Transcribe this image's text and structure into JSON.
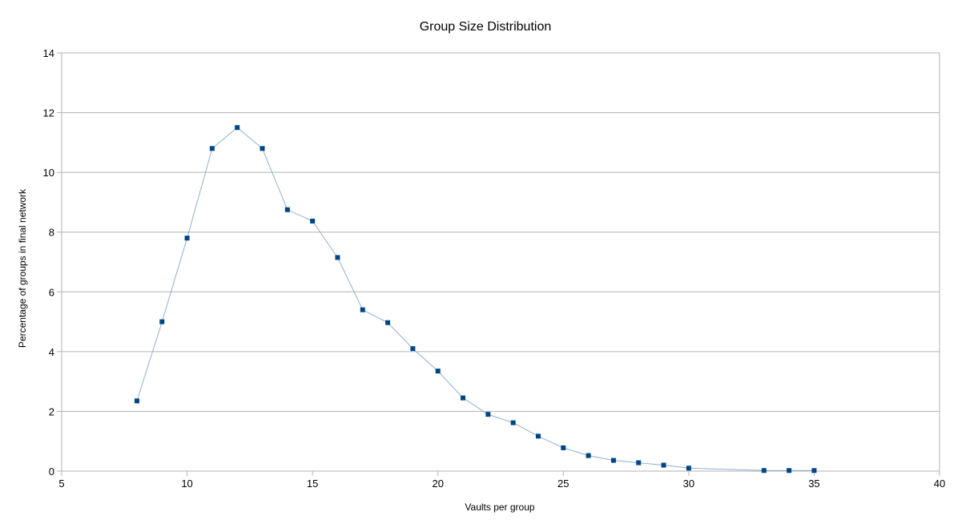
{
  "chart_data": {
    "type": "scatter",
    "title": "Group Size Distribution",
    "xlabel": "Vaults per group",
    "ylabel": "Percentage of groups in final network",
    "xlim": [
      5,
      40
    ],
    "ylim": [
      0,
      14
    ],
    "x_ticks": [
      5,
      10,
      15,
      20,
      25,
      30,
      35,
      40
    ],
    "y_ticks": [
      0,
      2,
      4,
      6,
      8,
      10,
      12,
      14
    ],
    "grid": "horizontal",
    "legend": "none",
    "line_color": "#8fb1d1",
    "marker_color": "#004586",
    "grid_color": "#b3b3b3",
    "axis_color": "#b3b3b3",
    "series": [
      {
        "x": [
          8,
          9,
          10,
          11,
          12,
          13,
          14,
          15,
          16,
          17,
          18,
          19,
          20,
          21,
          22,
          23,
          24,
          25,
          26,
          27,
          28,
          29,
          30,
          33,
          34,
          35
        ],
        "y": [
          2.35,
          5.0,
          7.8,
          10.8,
          11.5,
          10.8,
          8.75,
          8.37,
          7.15,
          5.4,
          4.97,
          4.1,
          3.35,
          2.45,
          1.9,
          1.62,
          1.17,
          0.78,
          0.52,
          0.36,
          0.28,
          0.2,
          0.1,
          0.02,
          0.02,
          0.02
        ]
      }
    ]
  }
}
